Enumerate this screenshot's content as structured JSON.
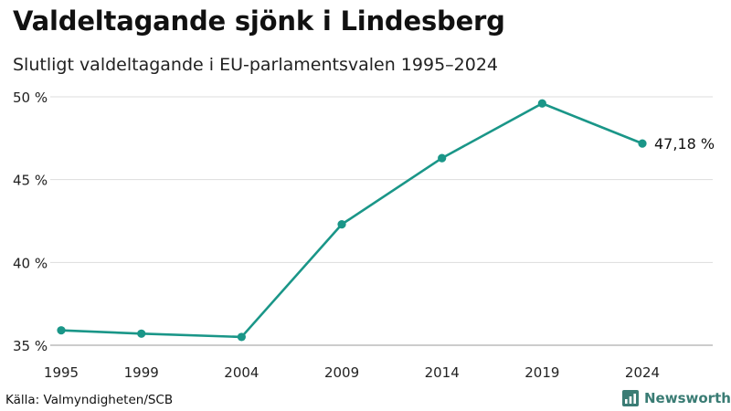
{
  "title": "Valdeltagande sjönk i Lindesberg",
  "subtitle": "Slutligt valdeltagande i EU-parlamentsvalen 1995–2024",
  "source": "Källa: Valmyndigheten/SCB",
  "brand": {
    "name": "Newsworthy",
    "icon": "newsworthy-logo-icon"
  },
  "colors": {
    "line": "#1a9688",
    "grid": "#dddddd",
    "axis": "#999999"
  },
  "chart_data": {
    "type": "line",
    "title": "Valdeltagande sjönk i Lindesberg",
    "xlabel": "",
    "ylabel": "",
    "categories": [
      "1995",
      "1999",
      "2004",
      "2009",
      "2014",
      "2019",
      "2024"
    ],
    "x": [
      1995,
      1999,
      2004,
      2009,
      2014,
      2019,
      2024
    ],
    "series": [
      {
        "name": "Valdeltagande",
        "values": [
          35.9,
          35.7,
          35.5,
          42.3,
          46.3,
          49.6,
          47.18
        ]
      }
    ],
    "xlim": [
      1995,
      2029
    ],
    "ylim": [
      35,
      50
    ],
    "yticks": [
      35,
      40,
      45,
      50
    ],
    "ytick_labels": [
      "35 %",
      "40 %",
      "45 %",
      "50 %"
    ],
    "end_label": "47,18 %",
    "grid": true
  }
}
